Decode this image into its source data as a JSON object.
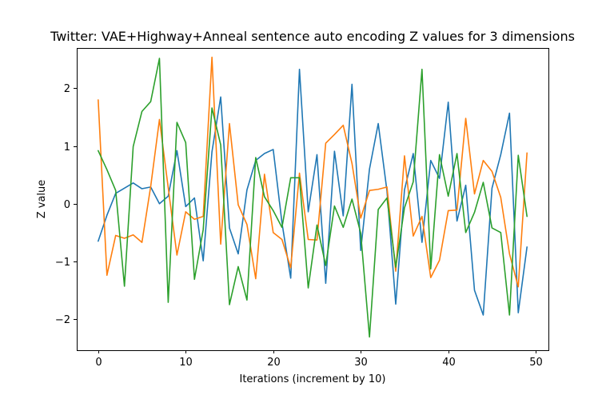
{
  "chart_data": {
    "type": "line",
    "title": "Twitter: VAE+Highway+Anneal sentence auto encoding Z values for 3 dimensions",
    "xlabel": "Iterations (increment by 10)",
    "ylabel": "Z value",
    "xlim": [
      -2.45,
      51.45
    ],
    "ylim": [
      -2.54,
      2.7
    ],
    "xticks": [
      0,
      10,
      20,
      30,
      40,
      50
    ],
    "yticks": [
      -2,
      -1,
      0,
      1,
      2
    ],
    "xtick_labels": [
      "0",
      "10",
      "20",
      "30",
      "40",
      "50"
    ],
    "ytick_labels": [
      "−2",
      "−1",
      "0",
      "1",
      "2"
    ],
    "grid": false,
    "x": [
      0,
      1,
      2,
      3,
      4,
      5,
      6,
      7,
      8,
      9,
      10,
      11,
      12,
      13,
      14,
      15,
      16,
      17,
      18,
      19,
      20,
      21,
      22,
      23,
      24,
      25,
      26,
      27,
      28,
      29,
      30,
      31,
      32,
      33,
      34,
      35,
      36,
      37,
      38,
      39,
      40,
      41,
      42,
      43,
      44,
      45,
      46,
      47,
      48,
      49
    ],
    "series": [
      {
        "color": "#1f77b4",
        "values": [
          -0.65,
          -0.2,
          0.18,
          0.27,
          0.36,
          0.26,
          0.29,
          0.0,
          0.13,
          0.92,
          -0.05,
          0.1,
          -0.99,
          0.9,
          1.85,
          -0.42,
          -0.87,
          0.24,
          0.75,
          0.87,
          0.94,
          -0.33,
          -1.29,
          2.33,
          -0.14,
          0.85,
          -1.38,
          0.91,
          -0.21,
          2.07,
          -0.81,
          0.6,
          1.39,
          0.22,
          -1.74,
          0.24,
          0.87,
          -0.67,
          0.75,
          0.44,
          1.76,
          -0.3,
          0.32,
          -1.5,
          -1.93,
          0.27,
          0.85,
          1.57,
          -1.89,
          -0.75
        ]
      },
      {
        "color": "#ff7f0e",
        "values": [
          1.8,
          -1.24,
          -0.55,
          -0.6,
          -0.54,
          -0.67,
          0.3,
          1.46,
          0.28,
          -0.89,
          -0.14,
          -0.27,
          -0.22,
          2.54,
          -0.7,
          1.39,
          -0.02,
          -0.36,
          -1.3,
          0.51,
          -0.5,
          -0.62,
          -1.11,
          0.53,
          -0.62,
          -0.63,
          1.05,
          1.2,
          1.36,
          0.7,
          -0.25,
          0.23,
          0.25,
          0.29,
          -1.17,
          0.83,
          -0.56,
          -0.22,
          -1.28,
          -0.98,
          -0.12,
          -0.11,
          1.48,
          0.17,
          0.75,
          0.56,
          0.11,
          -0.87,
          -1.44,
          0.88
        ]
      },
      {
        "color": "#2ca02c",
        "values": [
          0.92,
          0.59,
          0.23,
          -1.43,
          0.99,
          1.6,
          1.77,
          2.52,
          -1.71,
          1.41,
          1.06,
          -1.31,
          -0.45,
          1.66,
          1.02,
          -1.75,
          -1.09,
          -1.67,
          0.8,
          0.12,
          -0.12,
          -0.41,
          0.45,
          0.45,
          -1.46,
          -0.37,
          -1.07,
          -0.04,
          -0.41,
          0.08,
          -0.51,
          -2.31,
          -0.1,
          0.1,
          -1.1,
          -0.07,
          0.38,
          2.33,
          -1.13,
          0.85,
          0.13,
          0.87,
          -0.5,
          -0.15,
          0.37,
          -0.42,
          -0.5,
          -1.93,
          0.84,
          -0.22
        ]
      }
    ]
  }
}
